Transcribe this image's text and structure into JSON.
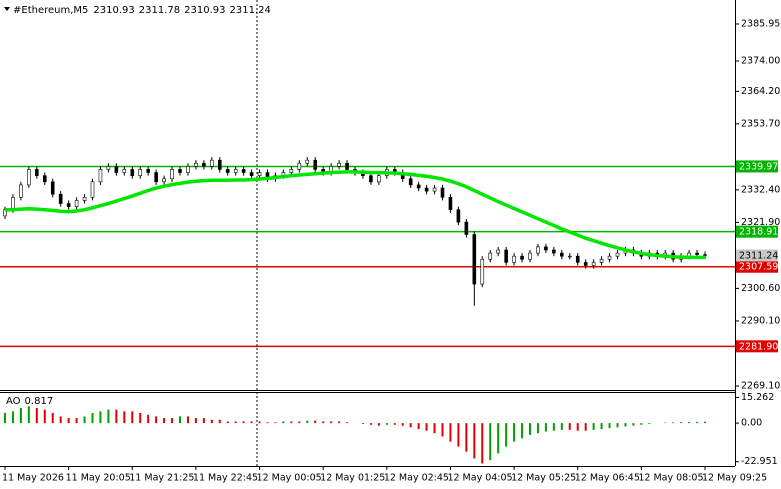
{
  "chart_data": [
    {
      "type": "candlestick",
      "title": "#Ethereum,M5",
      "quote": [
        2310.93,
        2311.78,
        2310.93,
        2311.24
      ],
      "categories": [
        "11 May 2026",
        null,
        null,
        null,
        null,
        null,
        null,
        null,
        "11 May 20:05",
        null,
        null,
        null,
        null,
        null,
        null,
        null,
        "11 May 21:25",
        null,
        null,
        null,
        null,
        null,
        null,
        null,
        "11 May 22:45",
        null,
        null,
        null,
        null,
        null,
        null,
        null,
        "12 May 00:05",
        null,
        null,
        null,
        null,
        null,
        null,
        null,
        "12 May 01:25",
        null,
        null,
        null,
        null,
        null,
        null,
        null,
        "12 May 02:45",
        null,
        null,
        null,
        null,
        null,
        null,
        null,
        "12 May 04:05",
        null,
        null,
        null,
        null,
        null,
        null,
        null,
        "12 May 05:25",
        null,
        null,
        null,
        null,
        null,
        null,
        null,
        "12 May 06:45",
        null,
        null,
        null,
        null,
        null,
        null,
        null,
        "12 May 08:05",
        null,
        null,
        null,
        null,
        null,
        null,
        null,
        "12 May 09:25"
      ],
      "open": [
        2324,
        2326,
        2330,
        2334,
        2339,
        2337,
        2335,
        2331,
        2328,
        2327,
        2329,
        2330,
        2335,
        2339,
        2340,
        2338,
        2339,
        2337,
        2339,
        2338,
        2335,
        2336,
        2339,
        2338,
        2340,
        2341,
        2340,
        2342,
        2339,
        2338,
        2339,
        2338,
        2337,
        2338,
        2336,
        2337,
        2338,
        2339,
        2341,
        2342,
        2339,
        2338,
        2340,
        2341,
        2339,
        2338,
        2337,
        2335,
        2337,
        2339,
        2338,
        2336,
        2334,
        2333,
        2332,
        2333,
        2330,
        2326,
        2322,
        2318,
        2302,
        2310,
        2312,
        2313,
        2309,
        2311,
        2310,
        2312,
        2314,
        2313,
        2312,
        2311,
        2311,
        2309,
        2308,
        2309,
        2310,
        2311,
        2312,
        2313,
        2312,
        2311,
        2312,
        2311,
        2312,
        2310,
        2311,
        2312,
        2311.5
      ],
      "high": [
        2327,
        2331,
        2335,
        2340,
        2340,
        2338,
        2336,
        2332,
        2329,
        2330,
        2331,
        2336,
        2340,
        2341,
        2341,
        2340,
        2340,
        2340,
        2340,
        2339,
        2337,
        2340,
        2340,
        2341,
        2342,
        2342,
        2343,
        2343,
        2340,
        2340,
        2340,
        2339,
        2339,
        2339,
        2338,
        2339,
        2340,
        2342,
        2343,
        2343,
        2340,
        2341,
        2342,
        2342,
        2340,
        2339,
        2338,
        2338,
        2340,
        2340,
        2339,
        2337,
        2335,
        2334,
        2334,
        2334,
        2331,
        2327,
        2323,
        2319,
        2311,
        2313,
        2314,
        2314,
        2312,
        2312,
        2313,
        2315,
        2315,
        2314,
        2313,
        2312,
        2312,
        2310,
        2310,
        2311,
        2312,
        2313,
        2314,
        2314,
        2313,
        2313,
        2313,
        2313,
        2313,
        2312,
        2313,
        2313,
        2312.5
      ],
      "low": [
        2323,
        2325,
        2329,
        2333,
        2336,
        2334,
        2330,
        2327,
        2326,
        2326,
        2328,
        2329,
        2334,
        2338,
        2337,
        2337,
        2336,
        2336,
        2337,
        2334,
        2334,
        2335,
        2337,
        2337,
        2339,
        2339,
        2339,
        2338,
        2337,
        2337,
        2337,
        2336,
        2336,
        2335,
        2335,
        2336,
        2337,
        2338,
        2340,
        2338,
        2337,
        2337,
        2339,
        2338,
        2337,
        2336,
        2334,
        2334,
        2336,
        2337,
        2335,
        2333,
        2332,
        2331,
        2331,
        2329,
        2325,
        2321,
        2317,
        2295,
        2301,
        2309,
        2311,
        2308,
        2308,
        2309,
        2309,
        2311,
        2312,
        2311,
        2310,
        2310,
        2308,
        2307,
        2307,
        2308,
        2309,
        2310,
        2311,
        2311,
        2310,
        2310,
        2310,
        2310,
        2309,
        2309,
        2310,
        2310.5,
        2310.24
      ],
      "close": [
        2326,
        2330,
        2334,
        2339,
        2337,
        2335,
        2331,
        2328,
        2327,
        2329,
        2330,
        2335,
        2339,
        2340,
        2338,
        2339,
        2337,
        2339,
        2338,
        2335,
        2336,
        2339,
        2338,
        2340,
        2341,
        2340,
        2342,
        2339,
        2338,
        2339,
        2338,
        2337,
        2338,
        2336,
        2337,
        2338,
        2339,
        2341,
        2342,
        2339,
        2338,
        2340,
        2341,
        2339,
        2338,
        2337,
        2335,
        2337,
        2339,
        2338,
        2336,
        2334,
        2333,
        2332,
        2333,
        2330,
        2326,
        2322,
        2318,
        2302,
        2310,
        2312,
        2313,
        2309,
        2311,
        2310,
        2312,
        2314,
        2313,
        2312,
        2311,
        2311,
        2309,
        2308,
        2309,
        2310,
        2311,
        2312,
        2313,
        2312,
        2311,
        2312,
        2311,
        2312,
        2310,
        2311,
        2312,
        2311.5,
        2311.24
      ],
      "up_color": "#ffffff",
      "down_color": "#000000",
      "line": {
        "color": "#00e600",
        "values": [
          2326,
          2326,
          2326.2,
          2326.3,
          2326.2,
          2326,
          2325.8,
          2325.5,
          2325.4,
          2325.6,
          2326,
          2326.6,
          2327.3,
          2328,
          2328.8,
          2329.6,
          2330.4,
          2331.3,
          2332.2,
          2333,
          2333.6,
          2334.1,
          2334.5,
          2334.9,
          2335.2,
          2335.4,
          2335.5,
          2335.5,
          2335.5,
          2335.6,
          2335.6,
          2335.7,
          2335.9,
          2336.1,
          2336.4,
          2336.7,
          2337,
          2337.2,
          2337.4,
          2337.6,
          2337.8,
          2338,
          2338.1,
          2338.2,
          2338.2,
          2338.1,
          2338,
          2338,
          2337.9,
          2337.8,
          2337.6,
          2337.4,
          2337.1,
          2336.8,
          2336.4,
          2335.9,
          2335.2,
          2334.4,
          2333.4,
          2332.2,
          2331,
          2329.8,
          2328.6,
          2327.5,
          2326.4,
          2325.3,
          2324.2,
          2323.1,
          2322,
          2320.9,
          2319.8,
          2318.8,
          2317.8,
          2316.8,
          2316,
          2315.2,
          2314.4,
          2313.7,
          2313,
          2312.4,
          2311.9,
          2311.5,
          2311.2,
          2311,
          2310.8,
          2310.7,
          2310.6,
          2310.6,
          2310.6
        ]
      },
      "levels": [
        {
          "value": 2339.97,
          "color": "#00b400"
        },
        {
          "value": 2318.91,
          "color": "#00b400"
        },
        {
          "value": 2307.59,
          "color": "#e00000"
        },
        {
          "value": 2281.9,
          "label": "2281.90",
          "color": "#e00000"
        }
      ],
      "ylim": [
        2267.8,
        2393.7
      ],
      "yticks": [
        2385.95,
        {
          "value": 2374,
          "label": "2374.00"
        },
        {
          "value": 2364.2,
          "label": "2364.20"
        },
        {
          "value": 2353.7,
          "label": "2353.70"
        },
        {
          "value": 2332.4,
          "label": "2332.40"
        },
        {
          "value": 2321.9,
          "label": "2321.90"
        },
        {
          "value": 2300.6,
          "label": "2300.60"
        },
        {
          "value": 2290.1,
          "label": "2290.10"
        },
        {
          "value": 2269.1,
          "label": "2269.10"
        }
      ]
    },
    {
      "type": "bar",
      "title": "AO",
      "up_color": "#00a000",
      "down_color": "#e00000",
      "values": [
        6,
        7,
        9,
        10,
        9,
        8,
        6,
        4,
        3,
        3,
        4,
        6,
        7,
        8,
        8,
        7,
        7,
        6,
        5,
        4,
        3,
        3,
        4,
        4,
        3,
        3,
        2,
        2,
        1,
        1,
        1,
        1,
        1,
        0.5,
        0.5,
        1,
        1,
        1,
        1.5,
        1.5,
        1,
        1,
        1,
        0.5,
        0,
        -0.5,
        -1,
        -1.5,
        -1,
        -1,
        -1.5,
        -2.5,
        -3.5,
        -4.5,
        -6,
        -8,
        -11,
        -14,
        -17,
        -21,
        -24,
        -22,
        -18,
        -14,
        -11,
        -9,
        -7,
        -6,
        -5,
        -4.5,
        -4,
        -4,
        -4.5,
        -4.5,
        -4,
        -3.5,
        -3,
        -2.5,
        -2,
        -1.5,
        -1,
        -0.5,
        0,
        0.3,
        0.5,
        0.6,
        0.7,
        0.75,
        0.817
      ],
      "ylim": [
        -25.5,
        18.5
      ],
      "yticks": [
        15.262,
        {
          "value": 0,
          "label": "0.00"
        },
        -22.951
      ]
    }
  ]
}
